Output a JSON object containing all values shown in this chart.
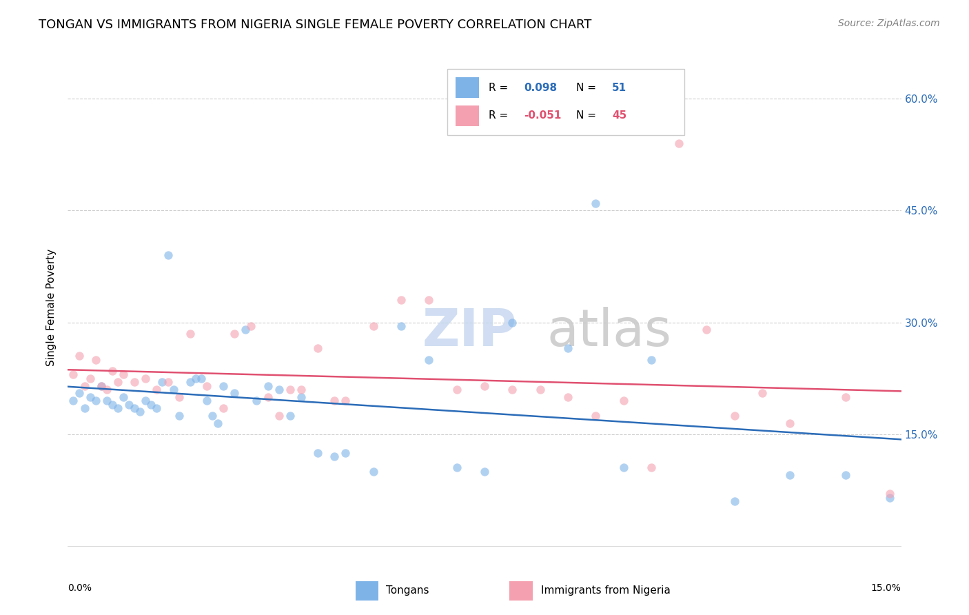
{
  "title": "TONGAN VS IMMIGRANTS FROM NIGERIA SINGLE FEMALE POVERTY CORRELATION CHART",
  "source": "Source: ZipAtlas.com",
  "ylabel": "Single Female Poverty",
  "y_ticks": [
    0.0,
    0.15,
    0.3,
    0.45,
    0.6
  ],
  "y_tick_labels": [
    "",
    "15.0%",
    "30.0%",
    "45.0%",
    "60.0%"
  ],
  "x_range": [
    0.0,
    0.15
  ],
  "y_range": [
    -0.01,
    0.65
  ],
  "r1": "0.098",
  "n1": "51",
  "r2": "-0.051",
  "n2": "45",
  "series1_label": "Tongans",
  "series2_label": "Immigrants from Nigeria",
  "series1_color": "#7eb3e8",
  "series2_color": "#f4a0b0",
  "trend1_color": "#2b6cb8",
  "trend2_color": "#e05070",
  "watermark_zip": "ZIP",
  "watermark_atlas": "atlas",
  "background_color": "#ffffff",
  "title_fontsize": 13,
  "source_fontsize": 10,
  "marker_size": 80,
  "marker_alpha": 0.6,
  "tongans_x": [
    0.001,
    0.002,
    0.003,
    0.004,
    0.005,
    0.006,
    0.007,
    0.008,
    0.009,
    0.01,
    0.011,
    0.012,
    0.013,
    0.014,
    0.015,
    0.016,
    0.017,
    0.018,
    0.019,
    0.02,
    0.022,
    0.023,
    0.024,
    0.025,
    0.026,
    0.027,
    0.028,
    0.03,
    0.032,
    0.034,
    0.036,
    0.038,
    0.04,
    0.042,
    0.045,
    0.048,
    0.05,
    0.055,
    0.06,
    0.065,
    0.07,
    0.075,
    0.08,
    0.09,
    0.095,
    0.1,
    0.105,
    0.12,
    0.13,
    0.14,
    0.148
  ],
  "tongans_y": [
    0.195,
    0.205,
    0.185,
    0.2,
    0.195,
    0.215,
    0.195,
    0.19,
    0.185,
    0.2,
    0.19,
    0.185,
    0.18,
    0.195,
    0.19,
    0.185,
    0.22,
    0.39,
    0.21,
    0.175,
    0.22,
    0.225,
    0.225,
    0.195,
    0.175,
    0.165,
    0.215,
    0.205,
    0.29,
    0.195,
    0.215,
    0.21,
    0.175,
    0.2,
    0.125,
    0.12,
    0.125,
    0.1,
    0.295,
    0.25,
    0.105,
    0.1,
    0.3,
    0.265,
    0.46,
    0.105,
    0.25,
    0.06,
    0.095,
    0.095,
    0.065
  ],
  "nigeria_x": [
    0.001,
    0.002,
    0.003,
    0.004,
    0.005,
    0.006,
    0.007,
    0.008,
    0.009,
    0.01,
    0.012,
    0.014,
    0.016,
    0.018,
    0.02,
    0.022,
    0.025,
    0.028,
    0.03,
    0.033,
    0.036,
    0.038,
    0.04,
    0.042,
    0.045,
    0.048,
    0.05,
    0.055,
    0.06,
    0.065,
    0.07,
    0.075,
    0.08,
    0.085,
    0.09,
    0.095,
    0.1,
    0.105,
    0.11,
    0.115,
    0.12,
    0.125,
    0.13,
    0.14,
    0.148
  ],
  "nigeria_y": [
    0.23,
    0.255,
    0.215,
    0.225,
    0.25,
    0.215,
    0.21,
    0.235,
    0.22,
    0.23,
    0.22,
    0.225,
    0.21,
    0.22,
    0.2,
    0.285,
    0.215,
    0.185,
    0.285,
    0.295,
    0.2,
    0.175,
    0.21,
    0.21,
    0.265,
    0.195,
    0.195,
    0.295,
    0.33,
    0.33,
    0.21,
    0.215,
    0.21,
    0.21,
    0.2,
    0.175,
    0.195,
    0.105,
    0.54,
    0.29,
    0.175,
    0.205,
    0.165,
    0.2,
    0.07
  ]
}
